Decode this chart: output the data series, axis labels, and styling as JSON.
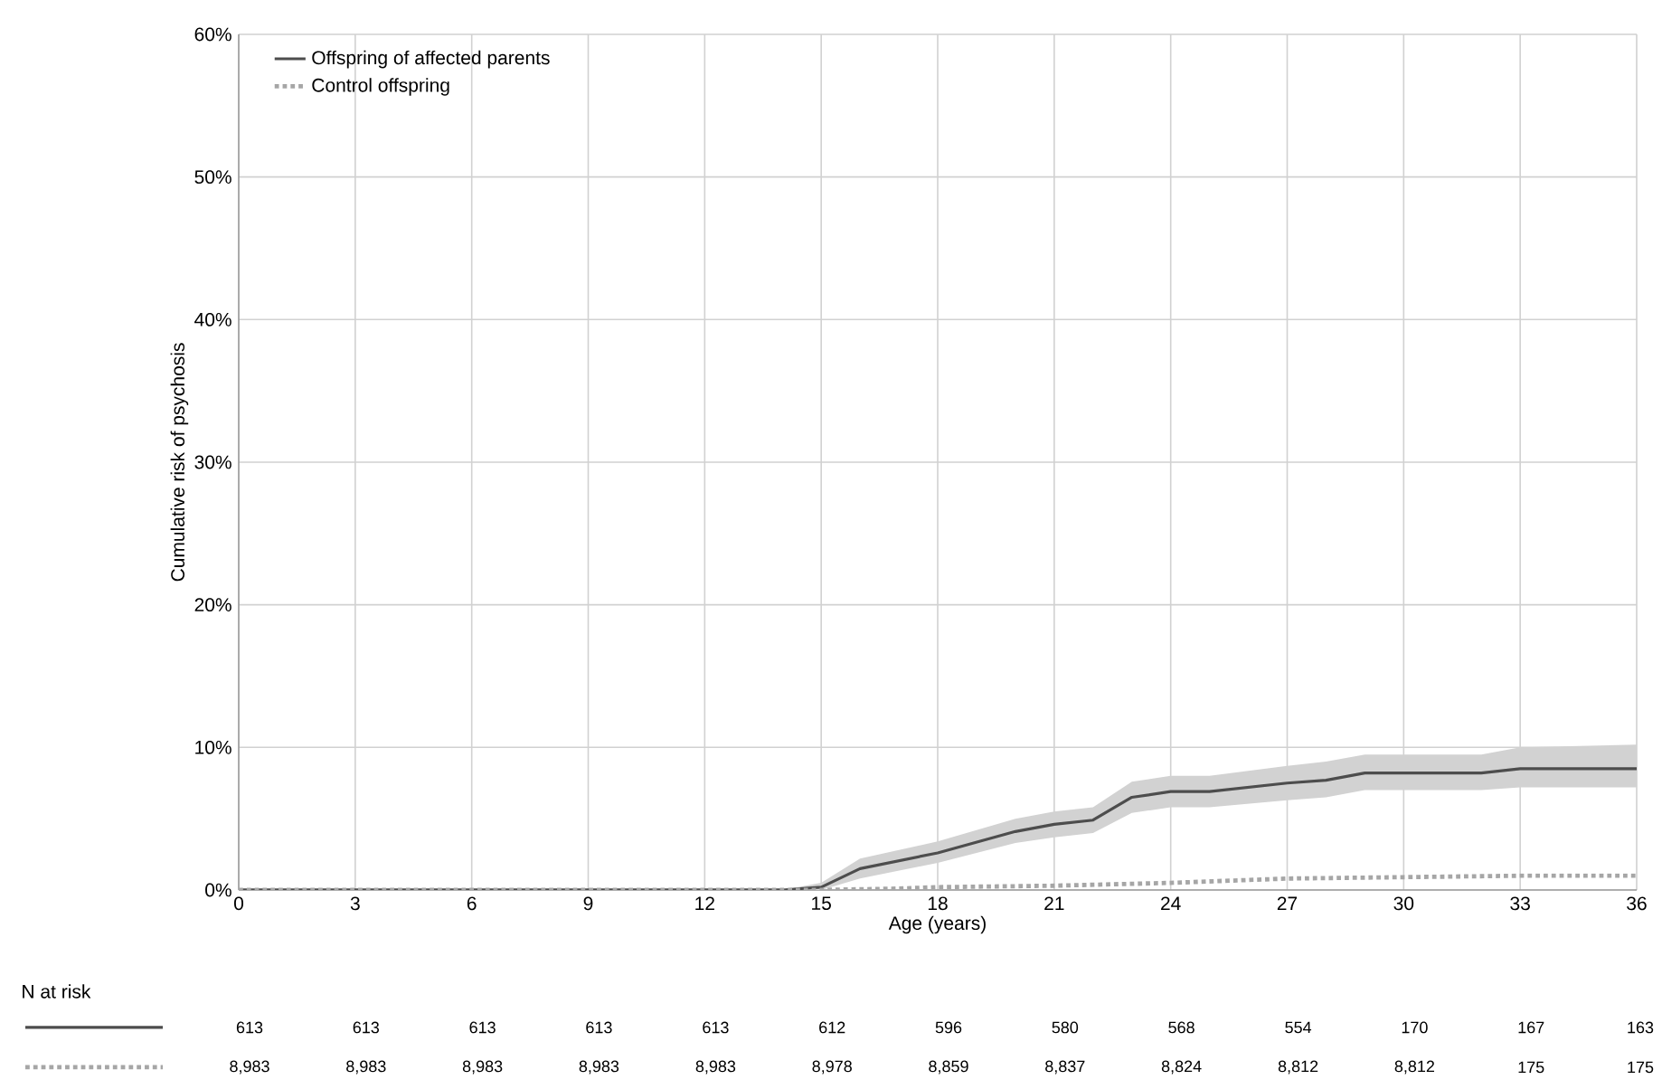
{
  "chart_data": {
    "type": "line",
    "xlabel": "Age (years)",
    "ylabel": "Cumulative risk of psychosis",
    "xlim": [
      0,
      36
    ],
    "xticks": [
      0,
      3,
      6,
      9,
      12,
      15,
      18,
      21,
      24,
      27,
      30,
      33,
      36
    ],
    "ylim": [
      0,
      60
    ],
    "yticks": [
      {
        "value": 0,
        "label": "0%"
      },
      {
        "value": 10,
        "label": "10%"
      },
      {
        "value": 20,
        "label": "20%"
      },
      {
        "value": 30,
        "label": "30%"
      },
      {
        "value": 40,
        "label": "40%"
      },
      {
        "value": 50,
        "label": "50%"
      },
      {
        "value": 60,
        "label": "60%"
      }
    ],
    "grid": true,
    "legend": "top left",
    "series": [
      {
        "name": "Offspring of affected parents",
        "color": "#4d4d4d",
        "line_style": "solid",
        "x": [
          0,
          14,
          15,
          16,
          18,
          20,
          21,
          22,
          23,
          24,
          25,
          27,
          28,
          29,
          32,
          33,
          36
        ],
        "values": [
          0,
          0,
          0.2,
          1.5,
          2.6,
          4.1,
          4.6,
          4.9,
          6.5,
          6.9,
          6.9,
          7.5,
          7.7,
          8.2,
          8.2,
          8.5,
          8.5
        ],
        "lower": [
          0,
          0,
          0,
          0.8,
          1.9,
          3.3,
          3.7,
          4.0,
          5.4,
          5.8,
          5.8,
          6.3,
          6.5,
          7.0,
          7.0,
          7.2,
          7.2
        ],
        "upper": [
          0,
          0,
          0.5,
          2.2,
          3.4,
          5.0,
          5.5,
          5.8,
          7.6,
          8.0,
          8.0,
          8.7,
          9.0,
          9.5,
          9.5,
          10.0,
          10.2
        ]
      },
      {
        "name": "Control offspring",
        "color": "#a6a6a6",
        "line_style": "dotted",
        "x": [
          0,
          15,
          17,
          18,
          21,
          24,
          27,
          30,
          33,
          36
        ],
        "values": [
          0,
          0,
          0.1,
          0.2,
          0.3,
          0.5,
          0.8,
          0.9,
          1.0,
          1.0
        ]
      }
    ],
    "annotations": [
      "N at risk",
      "613",
      "613",
      "613",
      "613",
      "613",
      "612",
      "596",
      "580",
      "568",
      "554",
      "170",
      "167",
      "163",
      "8,983",
      "8,983",
      "8,983",
      "8,983",
      "8,983",
      "8,978",
      "8,859",
      "8,837",
      "8,824",
      "8,812",
      "8,812",
      "175",
      "175"
    ]
  }
}
